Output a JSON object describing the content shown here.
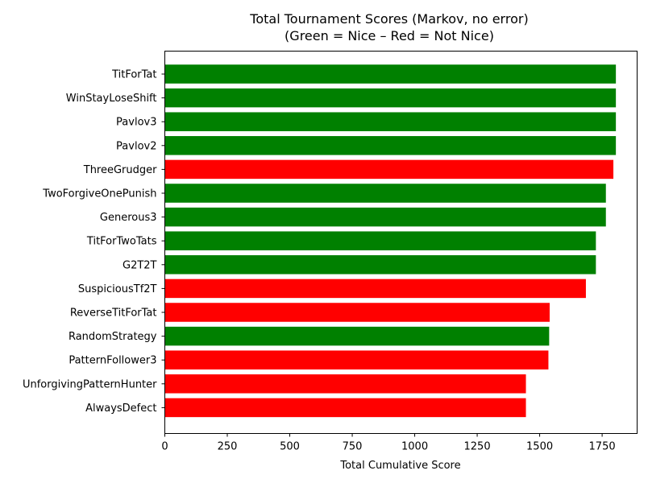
{
  "chart_data": {
    "type": "bar",
    "orientation": "horizontal",
    "title": "Total Tournament Scores (Markov, no error)",
    "subtitle": "(Green = Nice – Red = Not Nice)",
    "xlabel": "Total Cumulative Score",
    "ylabel": "",
    "xlim": [
      0,
      1890
    ],
    "xticks": [
      "0",
      "250",
      "500",
      "750",
      "1000",
      "1250",
      "1500",
      "1750"
    ],
    "grid": false,
    "categories": [
      "TitForTat",
      "WinStayLoseShift",
      "Pavlov3",
      "Pavlov2",
      "ThreeGrudger",
      "TwoForgiveOnePunish",
      "Generous3",
      "TitForTwoTats",
      "G2T2T",
      "SuspiciousTf2T",
      "ReverseTitForTat",
      "RandomStrategy",
      "PatternFollower3",
      "UnforgivingPatternHunter",
      "AlwaysDefect"
    ],
    "values": [
      1805,
      1805,
      1805,
      1805,
      1795,
      1765,
      1765,
      1725,
      1725,
      1685,
      1540,
      1538,
      1535,
      1445,
      1445
    ],
    "nice": [
      true,
      true,
      true,
      true,
      false,
      true,
      true,
      true,
      true,
      false,
      false,
      true,
      false,
      false,
      false
    ],
    "colors": {
      "nice": "#008000",
      "not_nice": "#ff0000"
    }
  }
}
